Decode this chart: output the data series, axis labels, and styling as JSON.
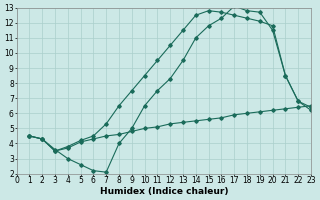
{
  "line1_x": [
    1,
    2,
    3,
    4,
    5,
    6,
    7,
    8,
    9,
    10,
    11,
    12,
    13,
    14,
    15,
    16,
    17,
    18,
    19,
    20,
    21,
    22,
    23
  ],
  "line1_y": [
    4.5,
    4.3,
    3.6,
    3.0,
    2.6,
    2.2,
    2.1,
    4.0,
    5.0,
    6.5,
    7.5,
    8.3,
    9.5,
    11.0,
    11.8,
    12.3,
    13.1,
    12.8,
    12.7,
    11.5,
    8.5,
    6.8,
    6.2
  ],
  "line2_x": [
    1,
    2,
    3,
    4,
    5,
    6,
    7,
    8,
    9,
    10,
    11,
    12,
    13,
    14,
    15,
    16,
    17,
    18,
    19,
    20,
    21,
    22,
    23
  ],
  "line2_y": [
    4.5,
    4.3,
    3.5,
    3.8,
    4.2,
    4.5,
    5.3,
    6.5,
    7.5,
    8.5,
    9.5,
    10.5,
    11.5,
    12.5,
    12.8,
    12.7,
    12.5,
    12.3,
    12.1,
    11.8,
    8.5,
    6.8,
    6.4
  ],
  "line3_x": [
    1,
    2,
    3,
    4,
    5,
    6,
    7,
    8,
    9,
    10,
    11,
    12,
    13,
    14,
    15,
    16,
    17,
    18,
    19,
    20,
    21,
    22,
    23
  ],
  "line3_y": [
    4.5,
    4.3,
    3.5,
    3.7,
    4.1,
    4.3,
    4.5,
    4.6,
    4.8,
    5.0,
    5.1,
    5.3,
    5.4,
    5.5,
    5.6,
    5.7,
    5.9,
    6.0,
    6.1,
    6.2,
    6.3,
    6.4,
    6.5
  ],
  "color": "#1a6b5a",
  "bg_color": "#cce8e6",
  "grid_color": "#aacfcc",
  "xlabel": "Humidex (Indice chaleur)",
  "xlim": [
    0,
    23
  ],
  "ylim": [
    2,
    13
  ],
  "xticks": [
    0,
    1,
    2,
    3,
    4,
    5,
    6,
    7,
    8,
    9,
    10,
    11,
    12,
    13,
    14,
    15,
    16,
    17,
    18,
    19,
    20,
    21,
    22,
    23
  ],
  "yticks": [
    2,
    3,
    4,
    5,
    6,
    7,
    8,
    9,
    10,
    11,
    12,
    13
  ],
  "xlabel_fontsize": 6.5,
  "tick_fontsize": 5.5
}
